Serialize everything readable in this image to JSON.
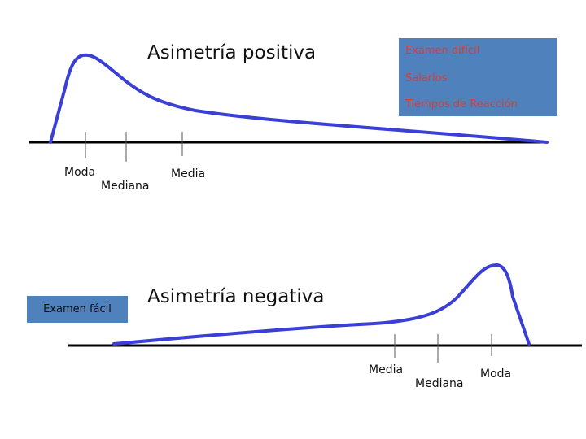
{
  "top": {
    "title": "Asimetría positiva",
    "box_lines": [
      "Examen difícil",
      "Salarios",
      "Tiempos de Reacción"
    ],
    "labels": {
      "moda": "Moda",
      "mediana": "Mediana",
      "media": "Media"
    }
  },
  "bottom": {
    "title": "Asimetría negativa",
    "box_label": "Examen fácil",
    "labels": {
      "media": "Media",
      "mediana": "Mediana",
      "moda": "Moda"
    }
  },
  "colors": {
    "curve": "#3a3fd6",
    "box": "#4f81bd",
    "box_text": "#e03a2f",
    "axis": "#000000"
  }
}
